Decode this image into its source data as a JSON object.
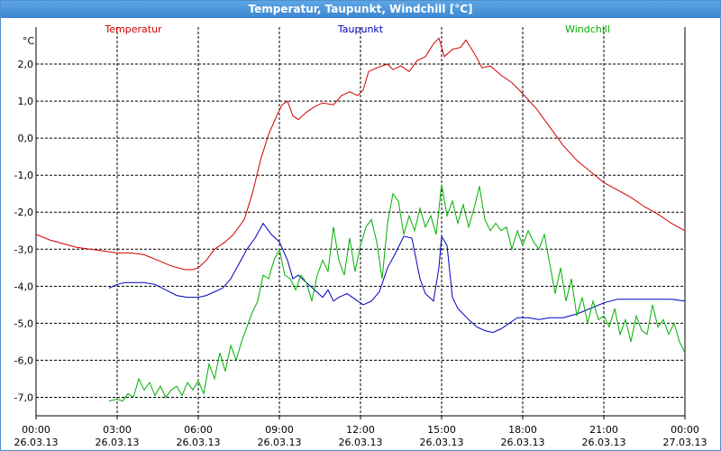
{
  "window": {
    "title": "Temperatur, Taupunkt, Windchill [°C]"
  },
  "chart_data": {
    "type": "line",
    "title": "Temperatur, Taupunkt, Windchill [°C]",
    "ylabel": "°C",
    "ylim": [
      -7.5,
      3.0
    ],
    "xlim": [
      0,
      24
    ],
    "grid": true,
    "y_ticks": [
      {
        "value": 2,
        "label": "2,0"
      },
      {
        "value": 1,
        "label": "1,0"
      },
      {
        "value": 0,
        "label": "0,0"
      },
      {
        "value": -1,
        "label": "-1,0"
      },
      {
        "value": -2,
        "label": "-2,0"
      },
      {
        "value": -3,
        "label": "-3,0"
      },
      {
        "value": -4,
        "label": "-4,0"
      },
      {
        "value": -5,
        "label": "-5,0"
      },
      {
        "value": -6,
        "label": "-6,0"
      },
      {
        "value": -7,
        "label": "-7,0"
      }
    ],
    "x_ticks": [
      {
        "value": 0,
        "time": "00:00",
        "date": "26.03.13"
      },
      {
        "value": 3,
        "time": "03:00",
        "date": "26.03.13"
      },
      {
        "value": 6,
        "time": "06:00",
        "date": "26.03.13"
      },
      {
        "value": 9,
        "time": "09:00",
        "date": "26.03.13"
      },
      {
        "value": 12,
        "time": "12:00",
        "date": "26.03.13"
      },
      {
        "value": 15,
        "time": "15:00",
        "date": "26.03.13"
      },
      {
        "value": 18,
        "time": "18:00",
        "date": "26.03.13"
      },
      {
        "value": 21,
        "time": "21:00",
        "date": "26.03.13"
      },
      {
        "value": 24,
        "time": "00:00",
        "date": "27.03.13"
      }
    ],
    "series": [
      {
        "name": "Temperatur",
        "color": "#d00000",
        "legend_position": "top-left",
        "x": [
          0,
          0.5,
          1,
          1.5,
          2,
          2.5,
          3,
          3.5,
          4,
          4.5,
          5,
          5.5,
          5.8,
          6,
          6.3,
          6.6,
          7,
          7.3,
          7.7,
          8,
          8.3,
          8.6,
          8.9,
          9.1,
          9.3,
          9.5,
          9.7,
          10,
          10.3,
          10.6,
          11,
          11.3,
          11.6,
          11.9,
          12.1,
          12.3,
          12.6,
          13,
          13.2,
          13.5,
          13.8,
          14.1,
          14.4,
          14.7,
          14.9,
          15.1,
          15.4,
          15.7,
          15.9,
          16.2,
          16.5,
          16.8,
          17.2,
          17.6,
          18,
          18.5,
          19,
          19.5,
          20,
          20.5,
          21,
          21.5,
          22,
          22.5,
          23,
          23.5,
          24
        ],
        "values": [
          -2.6,
          -2.75,
          -2.85,
          -2.95,
          -3.0,
          -3.05,
          -3.1,
          -3.1,
          -3.15,
          -3.3,
          -3.45,
          -3.55,
          -3.55,
          -3.5,
          -3.3,
          -3.0,
          -2.8,
          -2.6,
          -2.2,
          -1.5,
          -0.6,
          0.1,
          0.6,
          0.9,
          1.0,
          0.6,
          0.5,
          0.7,
          0.85,
          0.95,
          0.9,
          1.15,
          1.25,
          1.15,
          1.3,
          1.8,
          1.9,
          2.0,
          1.85,
          1.95,
          1.8,
          2.1,
          2.2,
          2.55,
          2.7,
          2.2,
          2.4,
          2.45,
          2.65,
          2.3,
          1.9,
          1.95,
          1.7,
          1.5,
          1.2,
          0.8,
          0.3,
          -0.2,
          -0.6,
          -0.9,
          -1.2,
          -1.4,
          -1.6,
          -1.85,
          -2.05,
          -2.3,
          -2.5
        ]
      },
      {
        "name": "Taupunkt",
        "color": "#0000c0",
        "legend_position": "top-center",
        "x": [
          2.7,
          3,
          3.3,
          3.6,
          4,
          4.4,
          4.8,
          5.2,
          5.6,
          6,
          6.3,
          6.6,
          6.9,
          7.2,
          7.5,
          7.8,
          8.1,
          8.4,
          8.7,
          9,
          9.3,
          9.5,
          9.7,
          10,
          10.3,
          10.6,
          10.8,
          11,
          11.2,
          11.5,
          11.8,
          12.1,
          12.4,
          12.7,
          13,
          13.3,
          13.6,
          13.9,
          14.2,
          14.4,
          14.7,
          14.9,
          15.0,
          15.2,
          15.4,
          15.6,
          15.8,
          16.0,
          16.3,
          16.6,
          16.9,
          17.2,
          17.5,
          17.8,
          18.2,
          18.6,
          19,
          19.5,
          20,
          20.5,
          21,
          21.5,
          22,
          22.5,
          23,
          23.5,
          24
        ],
        "values": [
          -4.05,
          -3.95,
          -3.9,
          -3.9,
          -3.9,
          -3.95,
          -4.1,
          -4.25,
          -4.3,
          -4.3,
          -4.25,
          -4.15,
          -4.05,
          -3.8,
          -3.4,
          -3.0,
          -2.7,
          -2.3,
          -2.6,
          -2.8,
          -3.3,
          -3.8,
          -3.7,
          -3.9,
          -4.1,
          -4.3,
          -4.1,
          -4.4,
          -4.3,
          -4.2,
          -4.35,
          -4.5,
          -4.4,
          -4.15,
          -3.5,
          -3.1,
          -2.65,
          -2.7,
          -3.8,
          -4.2,
          -4.4,
          -3.5,
          -2.65,
          -2.9,
          -4.3,
          -4.6,
          -4.75,
          -4.9,
          -5.1,
          -5.2,
          -5.25,
          -5.15,
          -5.0,
          -4.85,
          -4.85,
          -4.9,
          -4.85,
          -4.85,
          -4.75,
          -4.6,
          -4.45,
          -4.35,
          -4.35,
          -4.35,
          -4.35,
          -4.35,
          -4.4
        ]
      },
      {
        "name": "Windchill",
        "color": "#00b000",
        "legend_position": "top-right",
        "x": [
          2.7,
          3.0,
          3.2,
          3.4,
          3.6,
          3.8,
          4.0,
          4.2,
          4.4,
          4.6,
          4.8,
          5.0,
          5.2,
          5.4,
          5.6,
          5.8,
          6.0,
          6.2,
          6.4,
          6.6,
          6.8,
          7.0,
          7.2,
          7.4,
          7.6,
          7.8,
          8.0,
          8.2,
          8.4,
          8.6,
          8.8,
          9.0,
          9.2,
          9.4,
          9.6,
          9.8,
          10.0,
          10.2,
          10.4,
          10.6,
          10.8,
          11.0,
          11.2,
          11.4,
          11.6,
          11.8,
          12.0,
          12.2,
          12.4,
          12.6,
          12.8,
          13.0,
          13.2,
          13.4,
          13.6,
          13.8,
          14.0,
          14.2,
          14.4,
          14.6,
          14.8,
          15.0,
          15.2,
          15.4,
          15.6,
          15.8,
          16.0,
          16.2,
          16.4,
          16.6,
          16.8,
          17.0,
          17.2,
          17.4,
          17.6,
          17.8,
          18.0,
          18.2,
          18.4,
          18.6,
          18.8,
          19.0,
          19.2,
          19.4,
          19.6,
          19.8,
          20.0,
          20.2,
          20.4,
          20.6,
          20.8,
          21.0,
          21.2,
          21.4,
          21.6,
          21.8,
          22.0,
          22.2,
          22.4,
          22.6,
          22.8,
          23.0,
          23.2,
          23.4,
          23.6,
          23.8,
          24.0
        ],
        "values": [
          -7.1,
          -7.05,
          -7.1,
          -6.9,
          -7.0,
          -6.5,
          -6.8,
          -6.6,
          -6.95,
          -6.7,
          -7.0,
          -6.8,
          -6.7,
          -6.95,
          -6.6,
          -6.8,
          -6.55,
          -6.9,
          -6.1,
          -6.5,
          -5.8,
          -6.3,
          -5.6,
          -6.0,
          -5.5,
          -5.1,
          -4.7,
          -4.4,
          -3.7,
          -3.8,
          -3.3,
          -3.0,
          -3.7,
          -3.8,
          -4.1,
          -3.7,
          -3.9,
          -4.4,
          -3.7,
          -3.3,
          -3.6,
          -2.4,
          -3.3,
          -3.7,
          -2.7,
          -3.6,
          -2.9,
          -2.4,
          -2.2,
          -2.8,
          -3.8,
          -2.3,
          -1.5,
          -1.7,
          -2.6,
          -2.1,
          -2.5,
          -1.9,
          -2.4,
          -2.1,
          -2.6,
          -1.25,
          -2.1,
          -1.7,
          -2.3,
          -1.8,
          -2.4,
          -1.9,
          -1.3,
          -2.2,
          -2.5,
          -2.3,
          -2.5,
          -2.4,
          -3.0,
          -2.5,
          -2.9,
          -2.5,
          -2.8,
          -3.0,
          -2.6,
          -3.4,
          -4.2,
          -3.5,
          -4.4,
          -3.8,
          -4.8,
          -4.3,
          -5.0,
          -4.4,
          -4.9,
          -4.8,
          -5.1,
          -4.6,
          -5.3,
          -4.9,
          -5.5,
          -4.8,
          -5.2,
          -5.3,
          -4.5,
          -5.1,
          -4.9,
          -5.3,
          -5.0,
          -5.5,
          -5.8
        ]
      }
    ]
  }
}
